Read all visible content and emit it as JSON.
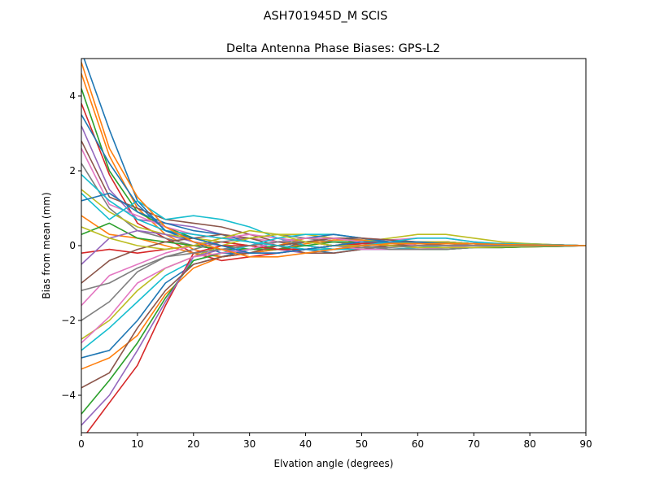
{
  "chart_data": {
    "type": "line",
    "suptitle": "ASH701945D_M    SCIS",
    "title": "Delta Antenna Phase Biases: GPS-L2",
    "xlabel": "Elvation angle (degrees)",
    "ylabel": "Bias from mean (mm)",
    "xlim": [
      0,
      90
    ],
    "ylim": [
      -5,
      5
    ],
    "xticks": [
      0,
      10,
      20,
      30,
      40,
      50,
      60,
      70,
      80,
      90
    ],
    "yticks": [
      -4,
      -2,
      0,
      2,
      4
    ],
    "grid": false,
    "legend": "none",
    "x": [
      0,
      5,
      10,
      15,
      20,
      25,
      30,
      35,
      40,
      45,
      50,
      55,
      60,
      65,
      70,
      75,
      80,
      85,
      90
    ],
    "colors": [
      "#1f77b4",
      "#ff7f0e",
      "#2ca02c",
      "#d62728",
      "#9467bd",
      "#8c564b",
      "#e377c2",
      "#7f7f7f",
      "#bcbd22",
      "#17becf"
    ],
    "series": [
      {
        "values": [
          5.2,
          3.1,
          1.2,
          0.4,
          0.1,
          -0.2,
          -0.2,
          -0.1,
          0.1,
          0.2,
          0.15,
          0.1,
          0.05,
          0.05,
          0.05,
          0.05,
          0.05,
          0.02,
          0
        ]
      },
      {
        "values": [
          4.6,
          2.4,
          1.0,
          0.3,
          -0.1,
          -0.3,
          -0.2,
          -0.1,
          0.05,
          0.15,
          0.15,
          0.1,
          0.1,
          0.1,
          0.05,
          0.05,
          0.03,
          0.02,
          0
        ]
      },
      {
        "values": [
          4.2,
          2.0,
          0.9,
          0.5,
          0.2,
          0.0,
          -0.1,
          0.0,
          0.1,
          0.1,
          0.1,
          0.05,
          0.05,
          0.05,
          0.05,
          0.05,
          0.03,
          0.02,
          0
        ]
      },
      {
        "values": [
          3.8,
          1.9,
          0.6,
          0.2,
          -0.2,
          -0.4,
          -0.3,
          -0.2,
          -0.1,
          0.0,
          0.05,
          0.05,
          0.05,
          0.05,
          0.05,
          0.03,
          0.02,
          0.01,
          0
        ]
      },
      {
        "values": [
          3.2,
          1.5,
          0.7,
          0.6,
          0.5,
          0.3,
          0.1,
          -0.1,
          -0.2,
          -0.1,
          0.0,
          0.05,
          0.1,
          0.1,
          0.05,
          0.05,
          0.03,
          0.02,
          0
        ]
      },
      {
        "values": [
          2.8,
          1.3,
          1.0,
          0.7,
          0.6,
          0.5,
          0.3,
          0.1,
          0.0,
          -0.1,
          -0.05,
          0.0,
          0.05,
          0.05,
          0.05,
          0.05,
          0.03,
          0.02,
          0
        ]
      },
      {
        "values": [
          2.6,
          1.1,
          0.8,
          0.5,
          0.3,
          0.2,
          0.2,
          0.1,
          0.2,
          0.3,
          0.2,
          0.15,
          0.2,
          0.2,
          0.1,
          0.05,
          0.03,
          0.02,
          0
        ]
      },
      {
        "values": [
          2.2,
          1.0,
          0.4,
          0.2,
          0.0,
          -0.1,
          0.0,
          0.1,
          0.2,
          0.2,
          0.1,
          0.0,
          0.0,
          0.0,
          0.05,
          0.05,
          0.03,
          0.02,
          0
        ]
      },
      {
        "values": [
          1.5,
          0.9,
          0.5,
          0.3,
          0.2,
          0.1,
          0.0,
          -0.1,
          -0.1,
          0.0,
          0.1,
          0.2,
          0.3,
          0.3,
          0.2,
          0.1,
          0.05,
          0.02,
          0
        ]
      },
      {
        "values": [
          1.4,
          0.7,
          1.2,
          0.7,
          0.8,
          0.7,
          0.5,
          0.2,
          0.0,
          -0.1,
          -0.1,
          -0.1,
          -0.05,
          0.0,
          0.0,
          0.0,
          0.0,
          0.0,
          0
        ]
      },
      {
        "values": [
          1.2,
          1.4,
          0.9,
          0.6,
          0.4,
          0.3,
          0.1,
          0.0,
          -0.1,
          -0.2,
          -0.1,
          -0.1,
          -0.1,
          -0.1,
          -0.05,
          -0.05,
          -0.03,
          -0.02,
          0
        ]
      },
      {
        "values": [
          0.8,
          0.3,
          0.2,
          0.0,
          -0.2,
          -0.3,
          -0.2,
          0.0,
          0.1,
          0.1,
          0.05,
          0.0,
          -0.05,
          -0.05,
          -0.05,
          -0.05,
          -0.03,
          -0.02,
          0
        ]
      },
      {
        "values": [
          0.3,
          0.6,
          0.2,
          0.1,
          0.0,
          -0.1,
          -0.1,
          0.0,
          0.1,
          0.0,
          0.0,
          -0.1,
          -0.1,
          -0.1,
          -0.05,
          -0.05,
          -0.03,
          -0.02,
          0
        ]
      },
      {
        "values": [
          -0.2,
          -0.1,
          -0.2,
          -0.1,
          0.0,
          0.1,
          0.0,
          -0.1,
          -0.1,
          0.0,
          0.1,
          0.1,
          0.0,
          0.0,
          0.0,
          0.0,
          0.0,
          0.0,
          0
        ]
      },
      {
        "values": [
          -0.5,
          0.2,
          0.4,
          0.3,
          0.1,
          0.0,
          -0.2,
          -0.2,
          -0.1,
          0.0,
          0.1,
          0.1,
          0.1,
          0.05,
          0.05,
          0.03,
          0.02,
          0.01,
          0
        ]
      },
      {
        "values": [
          -1.0,
          -0.4,
          -0.1,
          0.1,
          0.2,
          0.3,
          0.2,
          0.0,
          -0.2,
          -0.2,
          -0.1,
          0.0,
          0.0,
          0.05,
          0.05,
          0.03,
          0.02,
          0.01,
          0
        ]
      },
      {
        "values": [
          -1.6,
          -0.8,
          -0.5,
          -0.2,
          0.0,
          0.2,
          0.3,
          0.2,
          0.1,
          0.0,
          -0.1,
          -0.1,
          -0.1,
          -0.05,
          0.0,
          0.0,
          0.0,
          0.0,
          0
        ]
      },
      {
        "values": [
          -2.0,
          -1.5,
          -0.7,
          -0.3,
          -0.1,
          0.1,
          0.2,
          0.3,
          0.2,
          0.1,
          0.0,
          -0.1,
          -0.1,
          -0.1,
          -0.05,
          -0.03,
          -0.02,
          -0.01,
          0
        ]
      },
      {
        "values": [
          -2.5,
          -2.0,
          -1.2,
          -0.6,
          -0.3,
          0.0,
          0.2,
          0.3,
          0.3,
          0.2,
          0.1,
          0.0,
          -0.05,
          -0.05,
          -0.05,
          -0.03,
          -0.02,
          -0.01,
          0
        ]
      },
      {
        "values": [
          -2.8,
          -2.2,
          -1.5,
          -0.8,
          -0.4,
          -0.2,
          0.0,
          0.2,
          0.3,
          0.3,
          0.2,
          0.1,
          0.0,
          0.0,
          0.0,
          0.0,
          0.0,
          0.0,
          0
        ]
      },
      {
        "values": [
          -3.0,
          -2.8,
          -2.0,
          -1.0,
          -0.5,
          -0.3,
          -0.1,
          0.1,
          0.2,
          0.3,
          0.2,
          0.1,
          0.1,
          0.05,
          0.05,
          0.03,
          0.02,
          0.01,
          0
        ]
      },
      {
        "values": [
          -3.3,
          -3.0,
          -2.4,
          -1.3,
          -0.6,
          -0.3,
          -0.2,
          0.0,
          0.2,
          0.2,
          0.1,
          0.05,
          0.05,
          0.05,
          0.05,
          0.03,
          0.02,
          0.01,
          0
        ]
      },
      {
        "values": [
          -4.5,
          -3.6,
          -2.6,
          -1.4,
          -0.4,
          -0.2,
          -0.1,
          -0.1,
          0.0,
          0.1,
          0.1,
          0.1,
          0.1,
          0.1,
          0.05,
          0.03,
          0.02,
          0.01,
          0
        ]
      },
      {
        "values": [
          -5.2,
          -4.2,
          -3.2,
          -1.6,
          -0.2,
          0.0,
          0.0,
          -0.1,
          -0.1,
          0.0,
          0.05,
          0.1,
          0.1,
          0.1,
          0.05,
          0.03,
          0.02,
          0.01,
          0
        ]
      },
      {
        "values": [
          -4.8,
          -4.0,
          -2.8,
          -1.5,
          -0.3,
          -0.1,
          -0.2,
          -0.2,
          -0.1,
          0.0,
          0.1,
          0.1,
          0.05,
          0.05,
          0.05,
          0.03,
          0.02,
          0.01,
          0
        ]
      },
      {
        "values": [
          -3.8,
          -3.4,
          -2.2,
          -1.2,
          -0.5,
          -0.3,
          -0.2,
          0.0,
          0.1,
          0.2,
          0.2,
          0.15,
          0.1,
          0.1,
          0.05,
          0.03,
          0.02,
          0.01,
          0
        ]
      },
      {
        "values": [
          -2.6,
          -1.9,
          -1.0,
          -0.6,
          -0.3,
          -0.2,
          -0.1,
          0.1,
          0.2,
          0.2,
          0.1,
          0.1,
          0.0,
          0.0,
          0.0,
          0.0,
          0.0,
          0.0,
          0
        ]
      },
      {
        "values": [
          -1.2,
          -1.0,
          -0.6,
          -0.3,
          -0.2,
          -0.1,
          0.0,
          0.1,
          0.1,
          0.0,
          -0.05,
          -0.05,
          0.0,
          0.0,
          0.0,
          0.0,
          0.0,
          0.0,
          0
        ]
      },
      {
        "values": [
          0.5,
          0.2,
          0.0,
          -0.1,
          0.0,
          0.2,
          0.4,
          0.3,
          0.1,
          0.0,
          0.0,
          0.05,
          0.1,
          0.1,
          0.05,
          0.03,
          0.02,
          0.01,
          0
        ]
      },
      {
        "values": [
          1.9,
          1.2,
          0.7,
          0.4,
          0.3,
          0.2,
          0.1,
          0.0,
          -0.1,
          -0.1,
          0.0,
          0.1,
          0.2,
          0.2,
          0.1,
          0.05,
          0.03,
          0.02,
          0
        ]
      },
      {
        "values": [
          3.5,
          2.2,
          1.1,
          0.4,
          0.2,
          0.0,
          -0.2,
          -0.2,
          -0.1,
          0.0,
          0.1,
          0.1,
          0.1,
          0.05,
          0.05,
          0.03,
          0.02,
          0.01,
          0
        ]
      },
      {
        "values": [
          4.9,
          2.6,
          1.3,
          0.5,
          0.1,
          -0.1,
          -0.3,
          -0.3,
          -0.2,
          -0.1,
          0.0,
          0.05,
          0.05,
          0.05,
          0.05,
          0.03,
          0.02,
          0.01,
          0
        ]
      }
    ]
  }
}
